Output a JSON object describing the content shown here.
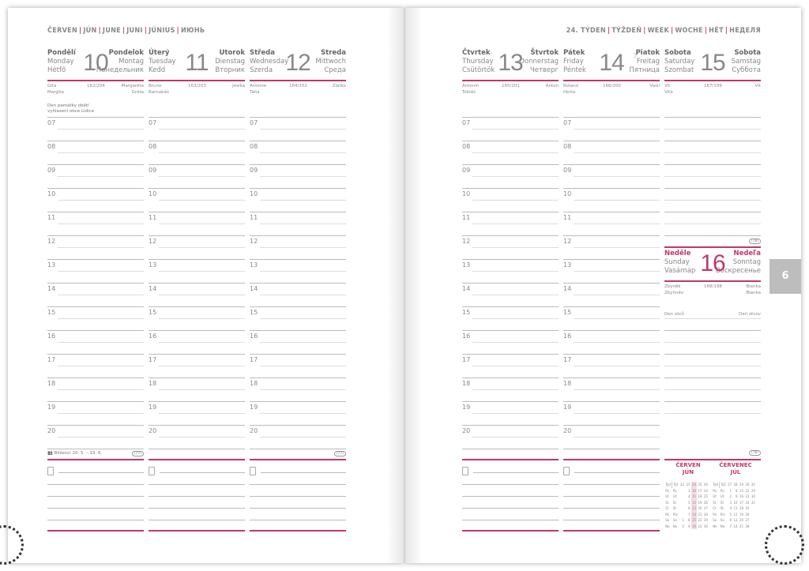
{
  "left_header": [
    "ČERVEN",
    "JÚN",
    "JUNE",
    "JUNI",
    "JÚNIUS",
    "ИЮНЬ"
  ],
  "right_header": [
    "24. TÝDEN",
    "TÝŽDEŇ",
    "WEEK",
    "WOCHE",
    "HÉT",
    "НЕДЕЛЯ"
  ],
  "side_tab": "6",
  "hours": [
    "07",
    "08",
    "09",
    "10",
    "11",
    "12",
    "13",
    "14",
    "15",
    "16",
    "17",
    "18",
    "19",
    "20"
  ],
  "days": [
    {
      "cz": "Pondělí",
      "en": "Monday",
      "hu": "Hétfő",
      "num": "10",
      "sk": "Pondelok",
      "de": "Montag",
      "ru": "Понедельник",
      "name1": "Gita",
      "count": "162/204",
      "sk_name1": "Margaréta",
      "name2": "Margita",
      "sk_name2": "Gréta",
      "note": "Den památky obětí vyhlazení obce Lidice",
      "zodiac": "Blíženci 20. 5. – 19. 6.",
      "badge": "(77)"
    },
    {
      "cz": "Úterý",
      "en": "Tuesday",
      "hu": "Kedd",
      "num": "11",
      "sk": "Utorok",
      "de": "Dienstag",
      "ru": "Вторник",
      "name1": "Bruno",
      "count": "163/203",
      "sk_name1": "Jesika",
      "name2": "Barnabáš",
      "sk_name2": ""
    },
    {
      "cz": "Středa",
      "en": "Wednesday",
      "hu": "Szerda",
      "num": "12",
      "sk": "Streda",
      "de": "Mittwoch",
      "ru": "Среда",
      "name1": "Antonie",
      "count": "164/202",
      "sk_name1": "Zlatko",
      "name2": "Táňa",
      "sk_name2": "",
      "badge": "(77)"
    },
    {
      "cz": "Čtvrtek",
      "en": "Thursday",
      "hu": "Csütörtök",
      "num": "13",
      "sk": "Štvrtok",
      "de": "Donnerstag",
      "ru": "Четверг",
      "name1": "Antonín",
      "count": "165/201",
      "sk_name1": "Anton",
      "name2": "Tobiáš",
      "sk_name2": ""
    },
    {
      "cz": "Pátek",
      "en": "Friday",
      "hu": "Péntek",
      "num": "14",
      "sk": "Piatok",
      "de": "Freitag",
      "ru": "Пятница",
      "name1": "Roland",
      "count": "166/200",
      "sk_name1": "Vasil",
      "name2": "Herta",
      "sk_name2": "",
      "moon": "waxing-moon-icon"
    },
    {
      "cz": "Sobota",
      "en": "Saturday",
      "hu": "Szombat",
      "num": "15",
      "sk": "Sobota",
      "de": "Samstag",
      "ru": "Суббота",
      "name1": "Vít",
      "count": "167/199",
      "sk_name1": "Vít",
      "name2": "Vita",
      "sk_name2": "",
      "badge": "(78)"
    }
  ],
  "sunday": {
    "cz": "Neděle",
    "en": "Sunday",
    "hu": "Vasárnap",
    "num": "16",
    "sk": "Nedeľa",
    "de": "Sonntag",
    "ru": "Воскресенье",
    "name1": "Zbyněk",
    "count": "168/198",
    "sk_name1": "Bianka",
    "name2": "Zbyhněv",
    "sk_name2": "Bianka",
    "note_cz": "Den otců",
    "note_sk": "Deň otcov",
    "badge": "(78)"
  },
  "accent": "#c0386a",
  "mini_calendars": [
    {
      "title1": "ČERVEN",
      "title2": "JÚN",
      "head": [
        "Týd",
        "Týž"
      ],
      "weeks": [
        "22",
        "23",
        "24",
        "25",
        "26"
      ],
      "highlight_col": 2,
      "rows": [
        [
          "Po",
          "Po",
          "",
          "3",
          "10",
          "17",
          "24"
        ],
        [
          "Út",
          "Ut",
          "",
          "4",
          "11",
          "18",
          "25"
        ],
        [
          "St",
          "St",
          "",
          "5",
          "12",
          "19",
          "26"
        ],
        [
          "Čt",
          "Št",
          "",
          "6",
          "13",
          "20",
          "27"
        ],
        [
          "Pá",
          "Pia",
          "",
          "7",
          "14",
          "21",
          "28"
        ],
        [
          "So",
          "So",
          "1",
          "8",
          "15",
          "22",
          "29"
        ],
        [
          "Ne",
          "Ne",
          "2",
          "9",
          "16",
          "23",
          "30"
        ]
      ]
    },
    {
      "title1": "ČERVENEC",
      "title2": "JÚL",
      "head": [
        "Týd",
        "Týž"
      ],
      "weeks": [
        "27",
        "28",
        "29",
        "30",
        "31"
      ],
      "rows": [
        [
          "Po",
          "Po",
          "1",
          "8",
          "15",
          "22",
          "29"
        ],
        [
          "Út",
          "Ut",
          "2",
          "9",
          "16",
          "23",
          "30"
        ],
        [
          "St",
          "St",
          "3",
          "10",
          "17",
          "24",
          "31"
        ],
        [
          "Čt",
          "Št",
          "4",
          "11",
          "18",
          "25",
          ""
        ],
        [
          "Pá",
          "Pia",
          "5",
          "12",
          "19",
          "26",
          ""
        ],
        [
          "So",
          "So",
          "6",
          "13",
          "20",
          "27",
          ""
        ],
        [
          "Ne",
          "Ne",
          "7",
          "14",
          "21",
          "28",
          ""
        ]
      ]
    }
  ]
}
